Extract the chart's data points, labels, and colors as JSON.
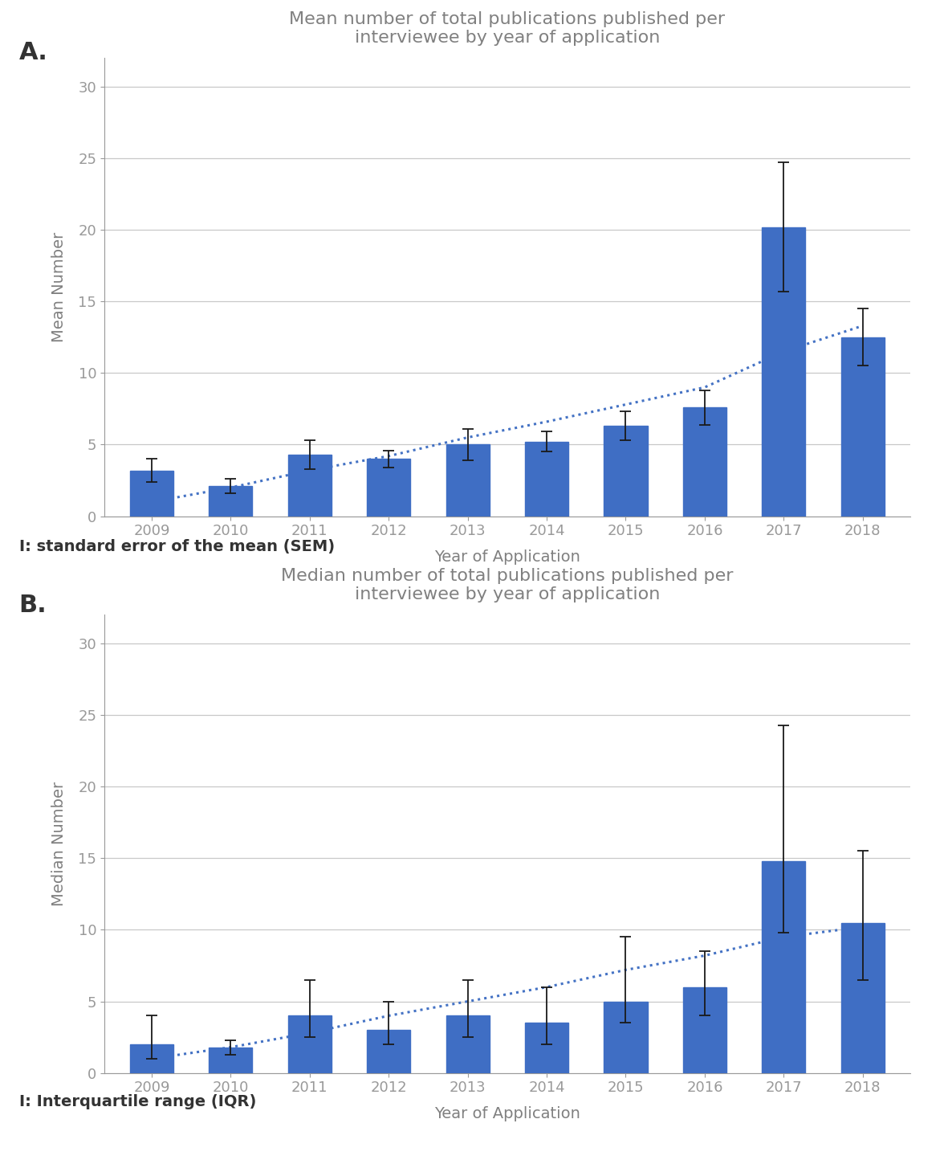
{
  "years": [
    "2009",
    "2010",
    "2011",
    "2012",
    "2013",
    "2014",
    "2015",
    "2016",
    "2017",
    "2018"
  ],
  "mean_values": [
    3.2,
    2.1,
    4.3,
    4.0,
    5.0,
    5.2,
    6.3,
    7.6,
    20.2,
    12.5
  ],
  "mean_err_upper": [
    0.8,
    0.5,
    1.0,
    0.6,
    1.1,
    0.7,
    1.0,
    1.2,
    4.5,
    2.0
  ],
  "mean_err_lower": [
    0.8,
    0.5,
    1.0,
    0.6,
    1.1,
    0.7,
    1.0,
    1.2,
    4.5,
    2.0
  ],
  "mean_trend": [
    1.0,
    2.0,
    3.2,
    4.2,
    5.5,
    6.6,
    7.8,
    9.0,
    11.5,
    13.3
  ],
  "median_values": [
    2.0,
    1.8,
    4.0,
    3.0,
    4.0,
    3.5,
    5.0,
    6.0,
    14.8,
    10.5
  ],
  "median_err_upper": [
    2.0,
    0.5,
    2.5,
    2.0,
    2.5,
    2.5,
    4.5,
    2.5,
    9.5,
    5.0
  ],
  "median_err_lower": [
    1.0,
    0.5,
    1.5,
    1.0,
    1.5,
    1.5,
    1.5,
    2.0,
    5.0,
    4.0
  ],
  "median_trend": [
    1.0,
    1.8,
    2.8,
    4.0,
    5.0,
    6.0,
    7.2,
    8.2,
    9.5,
    10.2
  ],
  "bar_color": "#3F6EC4",
  "trend_color": "#4472C4",
  "error_color": "#1a1a1a",
  "background_color": "#ffffff",
  "grid_color": "#c8c8c8",
  "axis_color": "#999999",
  "text_color_dark": "#333333",
  "text_color_gray": "#808080",
  "title_A": "Mean number of total publications published per\ninterviewee by year of application",
  "title_B": "Median number of total publications published per\ninterviewee by year of application",
  "ylabel_A": "Mean Number",
  "ylabel_B": "Median Number",
  "xlabel": "Year of Application",
  "label_A": "A.",
  "label_B": "B.",
  "caption_A": "I: standard error of the mean (SEM)",
  "caption_B": "I: Interquartile range (IQR)",
  "ylim": [
    0,
    32
  ],
  "yticks": [
    0,
    5,
    10,
    15,
    20,
    25,
    30
  ],
  "title_fontsize": 16,
  "label_fontsize": 14,
  "tick_fontsize": 13,
  "caption_fontsize": 14,
  "panel_label_fontsize": 22
}
